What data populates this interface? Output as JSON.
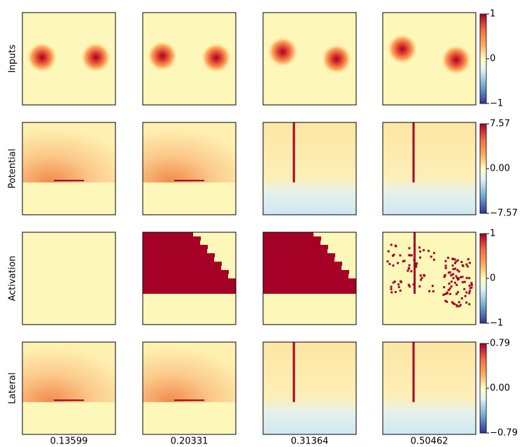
{
  "rows": [
    {
      "label": "Inputs",
      "colorbar": {
        "lim": [
          -1,
          1
        ],
        "ticks": [
          {
            "value": 1,
            "label": "1"
          },
          {
            "value": 0,
            "label": "0"
          },
          {
            "value": -1,
            "label": "−1"
          }
        ]
      }
    },
    {
      "label": "Potential",
      "colorbar": {
        "lim": [
          -7.57,
          7.57
        ],
        "ticks": [
          {
            "value": 7.57,
            "label": "7.57"
          },
          {
            "value": 0,
            "label": "0.00"
          },
          {
            "value": -7.57,
            "label": "−7.57"
          }
        ]
      }
    },
    {
      "label": "Activation",
      "colorbar": {
        "lim": [
          -1,
          1
        ],
        "ticks": [
          {
            "value": 1,
            "label": "1"
          },
          {
            "value": 0,
            "label": "0"
          },
          {
            "value": -1,
            "label": "−1"
          }
        ]
      }
    },
    {
      "label": "Lateral",
      "colorbar": {
        "lim": [
          -0.79,
          0.79
        ],
        "ticks": [
          {
            "value": 0.79,
            "label": "0.79"
          },
          {
            "value": 0,
            "label": "0.00"
          },
          {
            "value": -0.79,
            "label": "−0.79"
          }
        ]
      }
    }
  ],
  "columns": [
    "0.13599",
    "0.20331",
    "0.31364",
    "0.50462"
  ]
}
